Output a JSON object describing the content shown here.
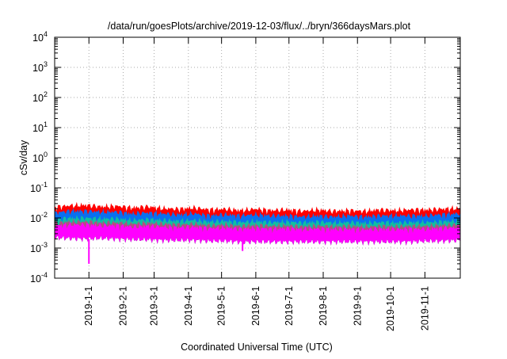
{
  "chart_data": {
    "type": "area",
    "title": "/data/run/goesPlots/archive/2019-12-03/flux/../bryn/366daysMars.plot",
    "xlabel": "Coordinated Universal Time (UTC)",
    "ylabel": "cSv/day",
    "yscale": "log",
    "ylim_exponents": [
      -4,
      4
    ],
    "y_tick_base": "10",
    "y_tick_exponents": [
      "4",
      "3",
      "2",
      "1",
      "0",
      "-1",
      "-2",
      "-3",
      "-4"
    ],
    "x_range": [
      "2018-12-01",
      "2019-12-03"
    ],
    "x_ticks": [
      {
        "label": "2019-1-1",
        "day": 31
      },
      {
        "label": "2019-2-1",
        "day": 62
      },
      {
        "label": "2019-3-1",
        "day": 90
      },
      {
        "label": "2019-4-1",
        "day": 121
      },
      {
        "label": "2019-5-1",
        "day": 151
      },
      {
        "label": "2019-6-1",
        "day": 182
      },
      {
        "label": "2019-7-1",
        "day": 212
      },
      {
        "label": "2019-8-1",
        "day": 243
      },
      {
        "label": "2019-9-1",
        "day": 274
      },
      {
        "label": "2019-10-1",
        "day": 304
      },
      {
        "label": "2019-11-1",
        "day": 335
      }
    ],
    "total_days": 367,
    "grid": true,
    "x_start": "2018-12-01",
    "x_step_days": 14,
    "series": [
      {
        "name": "red",
        "color": "#ff0000",
        "values": [
          0.023,
          0.026,
          0.027,
          0.024,
          0.025,
          0.022,
          0.024,
          0.021,
          0.02,
          0.022,
          0.019,
          0.02,
          0.018,
          0.02,
          0.018,
          0.019,
          0.017,
          0.019,
          0.017,
          0.018,
          0.017,
          0.019,
          0.018,
          0.019,
          0.019,
          0.02,
          0.021
        ]
      },
      {
        "name": "blue",
        "color": "#0a6ff0",
        "values": [
          0.015,
          0.017,
          0.017,
          0.016,
          0.016,
          0.014,
          0.015,
          0.014,
          0.013,
          0.014,
          0.012,
          0.013,
          0.012,
          0.013,
          0.012,
          0.012,
          0.011,
          0.012,
          0.011,
          0.012,
          0.011,
          0.012,
          0.012,
          0.012,
          0.012,
          0.013,
          0.014
        ]
      },
      {
        "name": "teal",
        "color": "#10c0a0",
        "values": [
          0.009,
          0.01,
          0.01,
          0.0095,
          0.0095,
          0.0085,
          0.009,
          0.0085,
          0.008,
          0.0085,
          0.0075,
          0.008,
          0.0072,
          0.0078,
          0.0072,
          0.0075,
          0.007,
          0.0074,
          0.007,
          0.0072,
          0.0068,
          0.0072,
          0.007,
          0.0072,
          0.0072,
          0.0076,
          0.008
        ]
      },
      {
        "name": "mauve",
        "color": "#b05080",
        "values": [
          0.0068,
          0.0075,
          0.0075,
          0.007,
          0.007,
          0.0064,
          0.0068,
          0.0064,
          0.006,
          0.0064,
          0.0056,
          0.006,
          0.0054,
          0.0058,
          0.0054,
          0.0056,
          0.0052,
          0.0055,
          0.0052,
          0.0054,
          0.0051,
          0.0054,
          0.0052,
          0.0054,
          0.0054,
          0.0057,
          0.006
        ]
      },
      {
        "name": "magenta",
        "color": "#ff00ff",
        "values": [
          0.0055,
          0.006,
          0.006,
          0.0056,
          0.0056,
          0.0051,
          0.0054,
          0.0051,
          0.0048,
          0.0051,
          0.0045,
          0.0048,
          0.0043,
          0.0046,
          0.0043,
          0.0045,
          0.0042,
          0.0044,
          0.0042,
          0.0043,
          0.0041,
          0.0043,
          0.0042,
          0.0043,
          0.0043,
          0.0046,
          0.0048
        ]
      }
    ],
    "lower_envelope": [
      0.0022,
      0.0021,
      0.002,
      0.0021,
      0.002,
      0.0019,
      0.0019,
      0.0018,
      0.0018,
      0.0018,
      0.0017,
      0.0017,
      0.0016,
      0.0016,
      0.0016,
      0.0016,
      0.0016,
      0.0016,
      0.0016,
      0.0016,
      0.0016,
      0.0016,
      0.0016,
      0.0016,
      0.0017,
      0.0017,
      0.0018
    ],
    "spikes": [
      {
        "day": 31,
        "value": 0.0003,
        "color": "#ff00ff"
      },
      {
        "day": 170,
        "value": 0.0008,
        "color": "#ff00ff"
      }
    ]
  }
}
